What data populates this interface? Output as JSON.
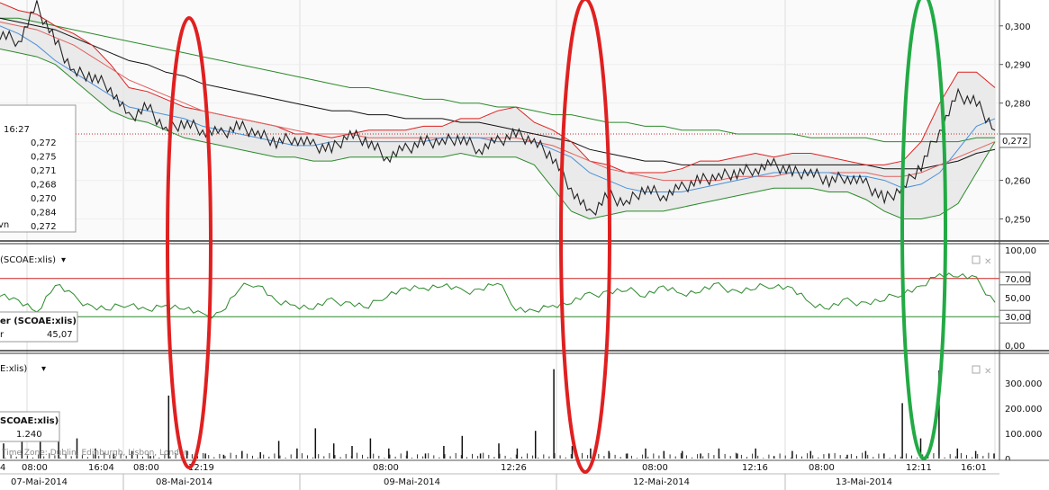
{
  "chart_data": [
    {
      "type": "line",
      "panel": "price",
      "ylim": [
        0.245,
        0.306
      ],
      "y_ticks": [
        "0,300",
        "0,290",
        "0,280",
        "0,270",
        "0,260",
        "0,250"
      ],
      "current_value": "0,272",
      "legend_box": {
        "time": "16:27",
        "values": [
          "0,272",
          "0,275",
          "0,271",
          "0,268",
          "0,270",
          "0,284",
          "0,272"
        ],
        "last_label": "vn"
      },
      "series": [
        {
          "role": "price",
          "color": "#222222",
          "values": [
            0.298,
            0.296,
            0.305,
            0.296,
            0.288,
            0.287,
            0.284,
            0.276,
            0.279,
            0.273,
            0.275,
            0.273,
            0.272,
            0.274,
            0.272,
            0.27,
            0.271,
            0.269,
            0.268,
            0.272,
            0.27,
            0.266,
            0.268,
            0.27,
            0.27,
            0.271,
            0.268,
            0.27,
            0.272,
            0.27,
            0.266,
            0.258,
            0.251,
            0.256,
            0.254,
            0.258,
            0.256,
            0.258,
            0.26,
            0.261,
            0.262,
            0.263,
            0.264,
            0.262,
            0.262,
            0.26,
            0.261,
            0.259,
            0.255,
            0.258,
            0.264,
            0.273,
            0.282,
            0.28,
            0.273
          ]
        },
        {
          "role": "sma_short",
          "color": "#4a90d9",
          "values": [
            0.3,
            0.298,
            0.295,
            0.291,
            0.288,
            0.285,
            0.282,
            0.279,
            0.278,
            0.277,
            0.276,
            0.274,
            0.273,
            0.272,
            0.271,
            0.27,
            0.269,
            0.269,
            0.27,
            0.27,
            0.27,
            0.27,
            0.27,
            0.27,
            0.271,
            0.271,
            0.271,
            0.27,
            0.27,
            0.27,
            0.268,
            0.266,
            0.262,
            0.26,
            0.258,
            0.257,
            0.257,
            0.257,
            0.258,
            0.259,
            0.26,
            0.261,
            0.262,
            0.262,
            0.262,
            0.262,
            0.261,
            0.261,
            0.26,
            0.258,
            0.259,
            0.262,
            0.268,
            0.274,
            0.276
          ]
        },
        {
          "role": "bollinger_upper",
          "color": "#dd2222",
          "values": [
            0.306,
            0.304,
            0.303,
            0.3,
            0.298,
            0.295,
            0.29,
            0.284,
            0.283,
            0.281,
            0.279,
            0.278,
            0.277,
            0.276,
            0.275,
            0.274,
            0.272,
            0.272,
            0.271,
            0.272,
            0.273,
            0.273,
            0.273,
            0.274,
            0.274,
            0.276,
            0.276,
            0.278,
            0.279,
            0.275,
            0.273,
            0.27,
            0.265,
            0.264,
            0.262,
            0.262,
            0.262,
            0.263,
            0.265,
            0.265,
            0.266,
            0.267,
            0.266,
            0.267,
            0.267,
            0.266,
            0.265,
            0.264,
            0.264,
            0.265,
            0.27,
            0.28,
            0.288,
            0.288,
            0.284
          ]
        },
        {
          "role": "bollinger_lower",
          "color": "#2b8a2b",
          "values": [
            0.294,
            0.293,
            0.292,
            0.29,
            0.286,
            0.282,
            0.278,
            0.276,
            0.275,
            0.273,
            0.271,
            0.27,
            0.269,
            0.268,
            0.267,
            0.266,
            0.266,
            0.265,
            0.265,
            0.266,
            0.266,
            0.266,
            0.266,
            0.266,
            0.266,
            0.267,
            0.266,
            0.266,
            0.266,
            0.264,
            0.258,
            0.252,
            0.25,
            0.251,
            0.252,
            0.252,
            0.252,
            0.253,
            0.254,
            0.255,
            0.256,
            0.257,
            0.258,
            0.258,
            0.258,
            0.257,
            0.257,
            0.255,
            0.252,
            0.25,
            0.25,
            0.251,
            0.254,
            0.262,
            0.27
          ]
        },
        {
          "role": "sma_mid",
          "color": "#e06060",
          "values": [
            0.301,
            0.3,
            0.299,
            0.297,
            0.295,
            0.292,
            0.289,
            0.286,
            0.284,
            0.282,
            0.28,
            0.278,
            0.277,
            0.276,
            0.275,
            0.274,
            0.273,
            0.272,
            0.272,
            0.272,
            0.271,
            0.271,
            0.271,
            0.271,
            0.271,
            0.271,
            0.271,
            0.271,
            0.271,
            0.27,
            0.269,
            0.267,
            0.265,
            0.263,
            0.262,
            0.261,
            0.26,
            0.26,
            0.26,
            0.26,
            0.261,
            0.261,
            0.261,
            0.262,
            0.262,
            0.262,
            0.262,
            0.262,
            0.261,
            0.261,
            0.262,
            0.264,
            0.266,
            0.268,
            0.27
          ]
        },
        {
          "role": "sma_long_black",
          "color": "#111111",
          "values": [
            0.302,
            0.301,
            0.3,
            0.299,
            0.297,
            0.295,
            0.293,
            0.291,
            0.29,
            0.288,
            0.287,
            0.285,
            0.284,
            0.283,
            0.282,
            0.281,
            0.28,
            0.279,
            0.278,
            0.278,
            0.277,
            0.277,
            0.276,
            0.276,
            0.276,
            0.275,
            0.275,
            0.274,
            0.273,
            0.272,
            0.271,
            0.27,
            0.268,
            0.267,
            0.266,
            0.265,
            0.265,
            0.264,
            0.264,
            0.264,
            0.264,
            0.264,
            0.264,
            0.264,
            0.264,
            0.264,
            0.264,
            0.264,
            0.263,
            0.263,
            0.263,
            0.264,
            0.265,
            0.267,
            0.268
          ]
        },
        {
          "role": "sma_long_green",
          "color": "#2b8a2b",
          "values": [
            0.302,
            0.302,
            0.301,
            0.3,
            0.299,
            0.298,
            0.297,
            0.296,
            0.295,
            0.294,
            0.293,
            0.292,
            0.291,
            0.29,
            0.289,
            0.288,
            0.287,
            0.286,
            0.285,
            0.284,
            0.284,
            0.283,
            0.282,
            0.281,
            0.281,
            0.28,
            0.28,
            0.279,
            0.279,
            0.278,
            0.277,
            0.277,
            0.276,
            0.275,
            0.275,
            0.274,
            0.274,
            0.273,
            0.273,
            0.273,
            0.272,
            0.272,
            0.272,
            0.272,
            0.271,
            0.271,
            0.271,
            0.271,
            0.27,
            0.27,
            0.27,
            0.27,
            0.27,
            0.271,
            0.271
          ]
        }
      ]
    },
    {
      "type": "line",
      "panel": "oscillator",
      "header": "(SCOAE:xlis)",
      "legend_box": {
        "name": "er (SCOAE:xlis)",
        "sub": "r",
        "value": "45,07"
      },
      "ylim": [
        0,
        100
      ],
      "y_ticks": [
        "100,00",
        "70,00",
        "50,00",
        "30,00",
        "0,00"
      ],
      "levels": [
        70,
        30
      ],
      "series": [
        {
          "role": "oscillator",
          "color": "#2b8a2b",
          "values": [
            55,
            45,
            35,
            65,
            50,
            40,
            38,
            45,
            35,
            42,
            40,
            30,
            34,
            60,
            66,
            44,
            42,
            40,
            46,
            44,
            40,
            54,
            58,
            60,
            64,
            56,
            58,
            66,
            40,
            34,
            42,
            46,
            52,
            56,
            58,
            54,
            60,
            54,
            58,
            62,
            56,
            60,
            64,
            58,
            44,
            40,
            46,
            44,
            48,
            56,
            60,
            75,
            74,
            68,
            45
          ]
        }
      ]
    },
    {
      "type": "bar",
      "panel": "volume",
      "header": "E:xlis)",
      "legend_box": {
        "name": "SCOAE:xlis)",
        "value": "1.240"
      },
      "ylim": [
        0,
        400000
      ],
      "y_ticks": [
        "300.000",
        "200.000",
        "100.000",
        "0"
      ],
      "values": [
        60000,
        110000,
        90000,
        150000,
        80000,
        40000,
        20000,
        30000,
        10000,
        250000,
        30000,
        20000,
        15000,
        30000,
        25000,
        70000,
        40000,
        120000,
        60000,
        50000,
        80000,
        40000,
        30000,
        20000,
        50000,
        90000,
        20000,
        60000,
        40000,
        110000,
        355000,
        50000,
        40000,
        30000,
        20000,
        40000,
        30000,
        30000,
        20000,
        40000,
        20000,
        40000,
        10000,
        30000,
        30000,
        20000,
        15000,
        30000,
        20000,
        220000,
        80000,
        350000,
        40000,
        30000,
        20000
      ]
    }
  ],
  "time_axis": {
    "times": [
      "4",
      "08:00",
      "16:04",
      "08:00",
      "12:19",
      "08:00",
      "12:26",
      "08:00",
      "12:16",
      "08:00",
      "12:11",
      "16:01"
    ],
    "dates": [
      "07-Mai-2014",
      "08-Mai-2014",
      "09-Mai-2014",
      "12-Mai-2014",
      "13-Mai-2014"
    ]
  },
  "footer_note": "Time Zone: Dublin, Edinburgh, Lisbon, London",
  "colors": {
    "annotation_red": "#e02020",
    "annotation_green": "#22aa44",
    "grid": "#dddddd"
  }
}
